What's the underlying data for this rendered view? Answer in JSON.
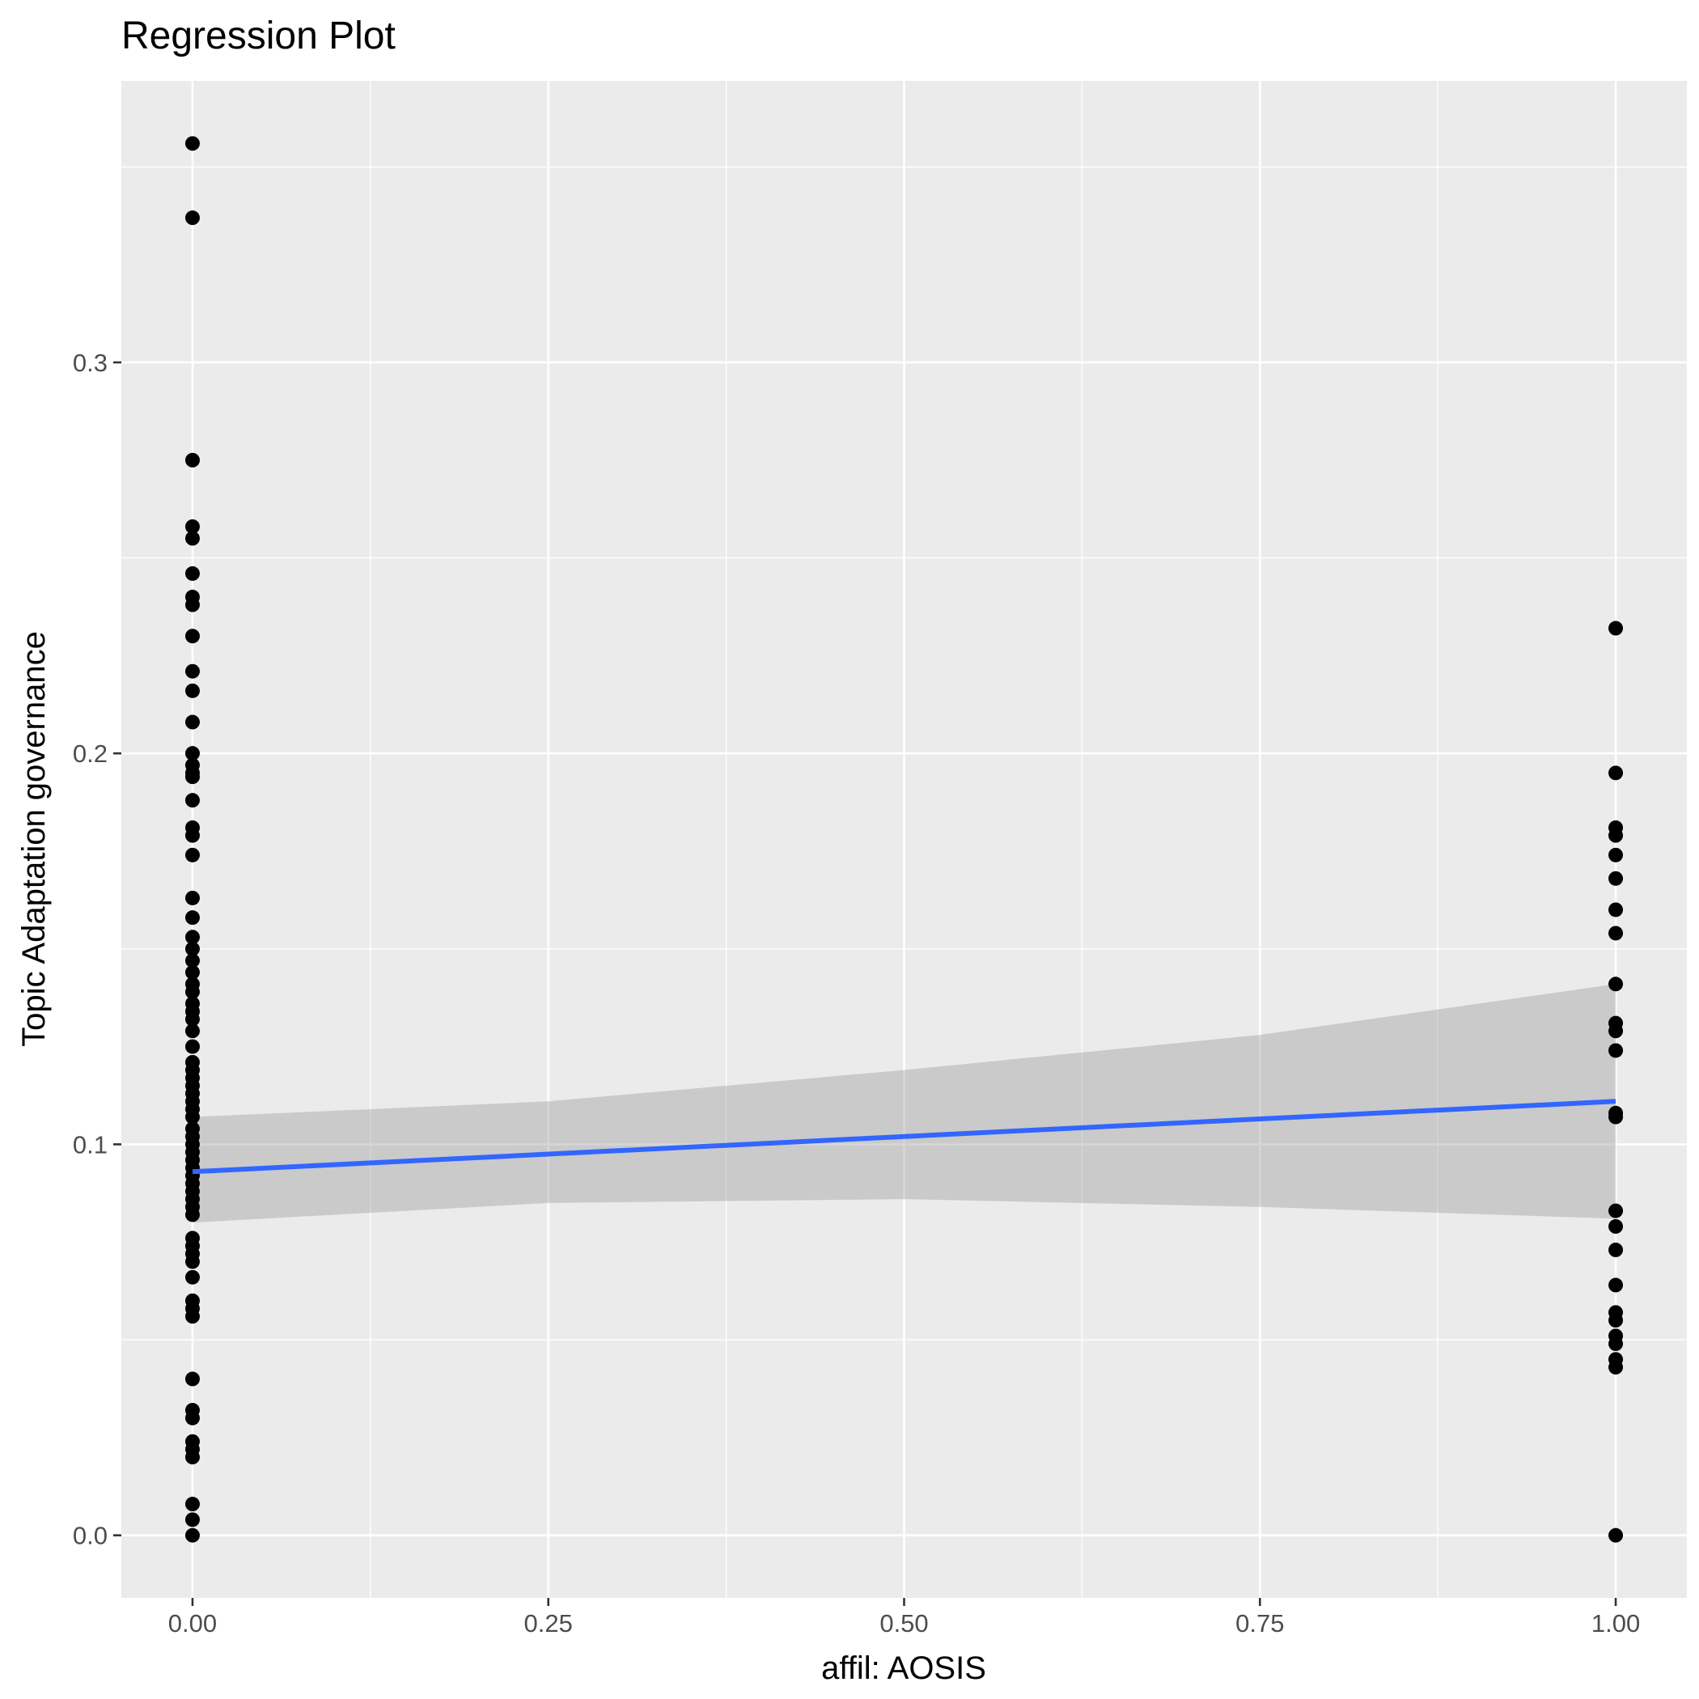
{
  "chart_data": {
    "type": "scatter",
    "title": "Regression Plot",
    "xlabel": "affil: AOSIS",
    "ylabel": "Topic Adaptation governance",
    "xlim": [
      -0.05,
      1.05
    ],
    "ylim": [
      -0.016,
      0.372
    ],
    "x_ticks": [
      0.0,
      0.25,
      0.5,
      0.75,
      1.0
    ],
    "x_tick_labels": [
      "0.00",
      "0.25",
      "0.50",
      "0.75",
      "1.00"
    ],
    "y_ticks": [
      0.0,
      0.1,
      0.2,
      0.3
    ],
    "y_tick_labels": [
      "0.0",
      "0.1",
      "0.2",
      "0.3"
    ],
    "grid": true,
    "legend": "none",
    "colors": {
      "panel_background": "#ebebeb",
      "grid": "#ffffff",
      "points": "#000000",
      "fit_line": "#3366ff",
      "confidence_band": "#999999"
    },
    "series": [
      {
        "x": 0,
        "y": [
          0.356,
          0.337,
          0.275,
          0.258,
          0.255,
          0.246,
          0.24,
          0.238,
          0.23,
          0.221,
          0.216,
          0.208,
          0.2,
          0.197,
          0.195,
          0.194,
          0.188,
          0.181,
          0.179,
          0.174,
          0.163,
          0.158,
          0.153,
          0.15,
          0.147,
          0.144,
          0.141,
          0.139,
          0.136,
          0.134,
          0.132,
          0.129,
          0.125,
          0.121,
          0.119,
          0.117,
          0.115,
          0.113,
          0.111,
          0.109,
          0.107,
          0.104,
          0.102,
          0.1,
          0.098,
          0.096,
          0.094,
          0.092,
          0.09,
          0.088,
          0.086,
          0.084,
          0.082,
          0.076,
          0.074,
          0.072,
          0.07,
          0.066,
          0.06,
          0.058,
          0.056,
          0.04,
          0.032,
          0.03,
          0.024,
          0.022,
          0.02,
          0.008,
          0.004,
          0.0
        ]
      },
      {
        "x": 1,
        "y": [
          0.232,
          0.195,
          0.181,
          0.179,
          0.174,
          0.168,
          0.16,
          0.154,
          0.141,
          0.131,
          0.129,
          0.124,
          0.108,
          0.107,
          0.083,
          0.079,
          0.073,
          0.064,
          0.057,
          0.055,
          0.051,
          0.049,
          0.045,
          0.043,
          0.0
        ]
      }
    ],
    "fit": {
      "x": [
        0,
        1
      ],
      "y": [
        0.093,
        0.111
      ]
    },
    "confidence_band": {
      "x": [
        0.0,
        0.25,
        0.5,
        0.75,
        1.0
      ],
      "lower": [
        0.08,
        0.085,
        0.086,
        0.084,
        0.081
      ],
      "upper": [
        0.107,
        0.111,
        0.119,
        0.128,
        0.141
      ]
    }
  }
}
